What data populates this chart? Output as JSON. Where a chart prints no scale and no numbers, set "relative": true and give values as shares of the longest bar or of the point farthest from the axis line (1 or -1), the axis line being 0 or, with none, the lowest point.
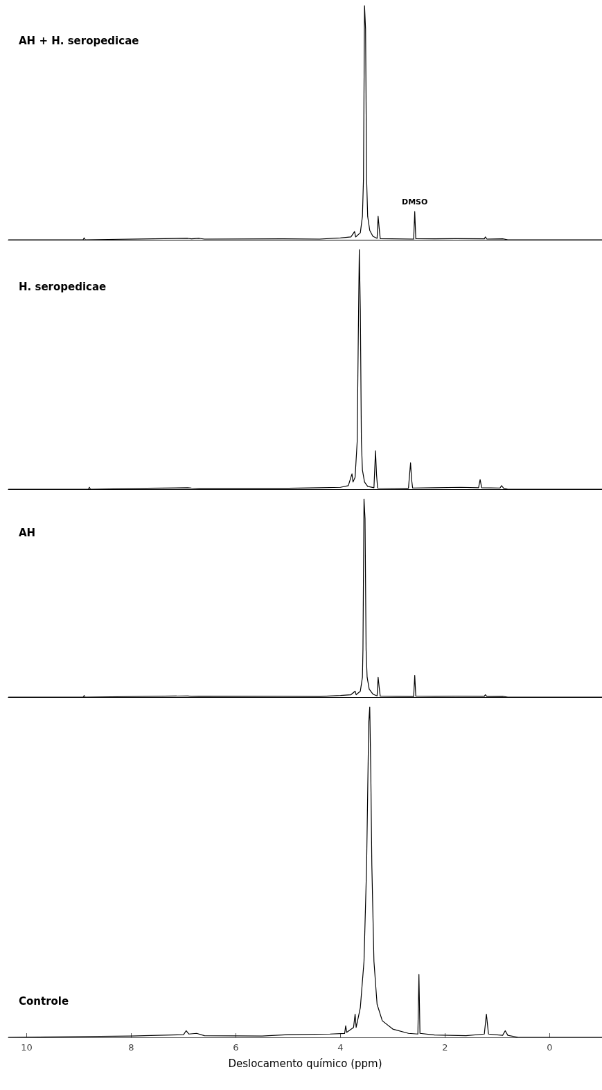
{
  "chart_data": [
    {
      "type": "line",
      "title": "AH + H. seropedicae",
      "relative": true,
      "xlim": [
        10.35,
        -1.0
      ],
      "xticks": [
        10,
        8,
        6,
        4,
        2,
        0
      ],
      "tick_labels": false,
      "annotations": [
        {
          "text": "DMSO",
          "x": 2.58,
          "y": 0.12
        }
      ],
      "series": [
        {
          "color": "#000000",
          "x": [
            10.35,
            8.92,
            8.9,
            8.88,
            6.92,
            6.85,
            6.7,
            6.6,
            5.1,
            4.4,
            4.0,
            3.8,
            3.73,
            3.71,
            3.62,
            3.58,
            3.56,
            3.54,
            3.52,
            3.5,
            3.48,
            3.44,
            3.38,
            3.3,
            3.28,
            3.26,
            3.24,
            2.6,
            2.58,
            2.56,
            2.2,
            1.8,
            1.25,
            1.23,
            1.2,
            0.9,
            0.8,
            -1.0
          ],
          "values": [
            0,
            0,
            0.008,
            0,
            0.006,
            0.004,
            0.006,
            0.003,
            0.004,
            0.003,
            0.008,
            0.012,
            0.035,
            0.012,
            0.03,
            0.1,
            0.26,
            1.0,
            0.9,
            0.26,
            0.1,
            0.04,
            0.015,
            0.006,
            0.1,
            0.05,
            0.005,
            0.003,
            0.12,
            0.005,
            0.004,
            0.005,
            0.004,
            0.012,
            0.003,
            0.004,
            0,
            0
          ]
        }
      ]
    },
    {
      "type": "line",
      "title": "H. seropedicae",
      "relative": true,
      "xlim": [
        10.35,
        -1.0
      ],
      "xticks": [
        10,
        8,
        6,
        4,
        2,
        0
      ],
      "tick_labels": false,
      "series": [
        {
          "color": "#000000",
          "x": [
            10.35,
            8.82,
            8.8,
            8.78,
            7.7,
            6.92,
            6.85,
            6.7,
            5.0,
            4.4,
            4.0,
            3.85,
            3.78,
            3.76,
            3.72,
            3.68,
            3.66,
            3.64,
            3.62,
            3.6,
            3.58,
            3.54,
            3.48,
            3.36,
            3.33,
            3.31,
            3.29,
            2.7,
            2.66,
            2.64,
            2.62,
            2.2,
            1.7,
            1.36,
            1.33,
            1.3,
            0.95,
            0.92,
            0.88,
            0.8,
            -1.0
          ],
          "values": [
            0,
            0,
            0.008,
            0,
            0.004,
            0.006,
            0.005,
            0.004,
            0.004,
            0.006,
            0.008,
            0.015,
            0.064,
            0.03,
            0.05,
            0.2,
            0.62,
            1.0,
            0.75,
            0.2,
            0.08,
            0.03,
            0.012,
            0.006,
            0.16,
            0.06,
            0.005,
            0.004,
            0.11,
            0.04,
            0.005,
            0.006,
            0.008,
            0.006,
            0.04,
            0.006,
            0.005,
            0.015,
            0.004,
            0,
            0
          ]
        }
      ]
    },
    {
      "type": "line",
      "title": "AH",
      "relative": true,
      "xlim": [
        10.35,
        -1.0
      ],
      "xticks": [
        10,
        8,
        6,
        4,
        2,
        0
      ],
      "tick_labels": false,
      "series": [
        {
          "color": "#000000",
          "x": [
            10.35,
            8.92,
            8.9,
            8.88,
            6.92,
            6.85,
            6.7,
            5.1,
            4.4,
            4.0,
            3.8,
            3.72,
            3.7,
            3.62,
            3.58,
            3.57,
            3.55,
            3.53,
            3.51,
            3.49,
            3.45,
            3.38,
            3.3,
            3.28,
            3.26,
            3.24,
            2.6,
            2.58,
            2.56,
            2.2,
            1.8,
            1.25,
            1.23,
            1.2,
            0.9,
            0.8,
            -1.0
          ],
          "values": [
            0,
            0,
            0.008,
            0,
            0.006,
            0.004,
            0.005,
            0.004,
            0.003,
            0.008,
            0.012,
            0.03,
            0.012,
            0.03,
            0.1,
            0.24,
            1.0,
            0.9,
            0.24,
            0.1,
            0.04,
            0.015,
            0.006,
            0.1,
            0.05,
            0.005,
            0.003,
            0.11,
            0.005,
            0.004,
            0.005,
            0.004,
            0.012,
            0.003,
            0.004,
            0,
            0
          ]
        }
      ]
    },
    {
      "type": "line",
      "title": "Controle",
      "relative": true,
      "xlim": [
        10.35,
        -1.0
      ],
      "xticks": [
        10,
        8,
        6,
        4,
        2,
        0
      ],
      "tick_labels": "x",
      "xlabel": "Deslocamento químico (ppm)",
      "series": [
        {
          "color": "#000000",
          "x": [
            10.35,
            8.0,
            7.5,
            7.0,
            6.95,
            6.9,
            6.75,
            6.6,
            5.5,
            5.0,
            4.2,
            3.92,
            3.9,
            3.88,
            3.75,
            3.72,
            3.7,
            3.62,
            3.55,
            3.5,
            3.46,
            3.44,
            3.42,
            3.4,
            3.36,
            3.3,
            3.2,
            3.0,
            2.7,
            2.52,
            2.5,
            2.48,
            2.2,
            1.6,
            1.25,
            1.21,
            1.17,
            0.9,
            0.85,
            0.8,
            0.6,
            -1.0
          ],
          "values": [
            0,
            0.004,
            0.006,
            0.008,
            0.02,
            0.01,
            0.012,
            0.005,
            0.004,
            0.008,
            0.01,
            0.012,
            0.035,
            0.015,
            0.03,
            0.07,
            0.03,
            0.09,
            0.23,
            0.52,
            0.95,
            1.0,
            0.8,
            0.52,
            0.23,
            0.1,
            0.05,
            0.025,
            0.012,
            0.01,
            0.19,
            0.012,
            0.007,
            0.005,
            0.01,
            0.07,
            0.01,
            0.006,
            0.02,
            0.006,
            0,
            0
          ]
        }
      ]
    }
  ]
}
